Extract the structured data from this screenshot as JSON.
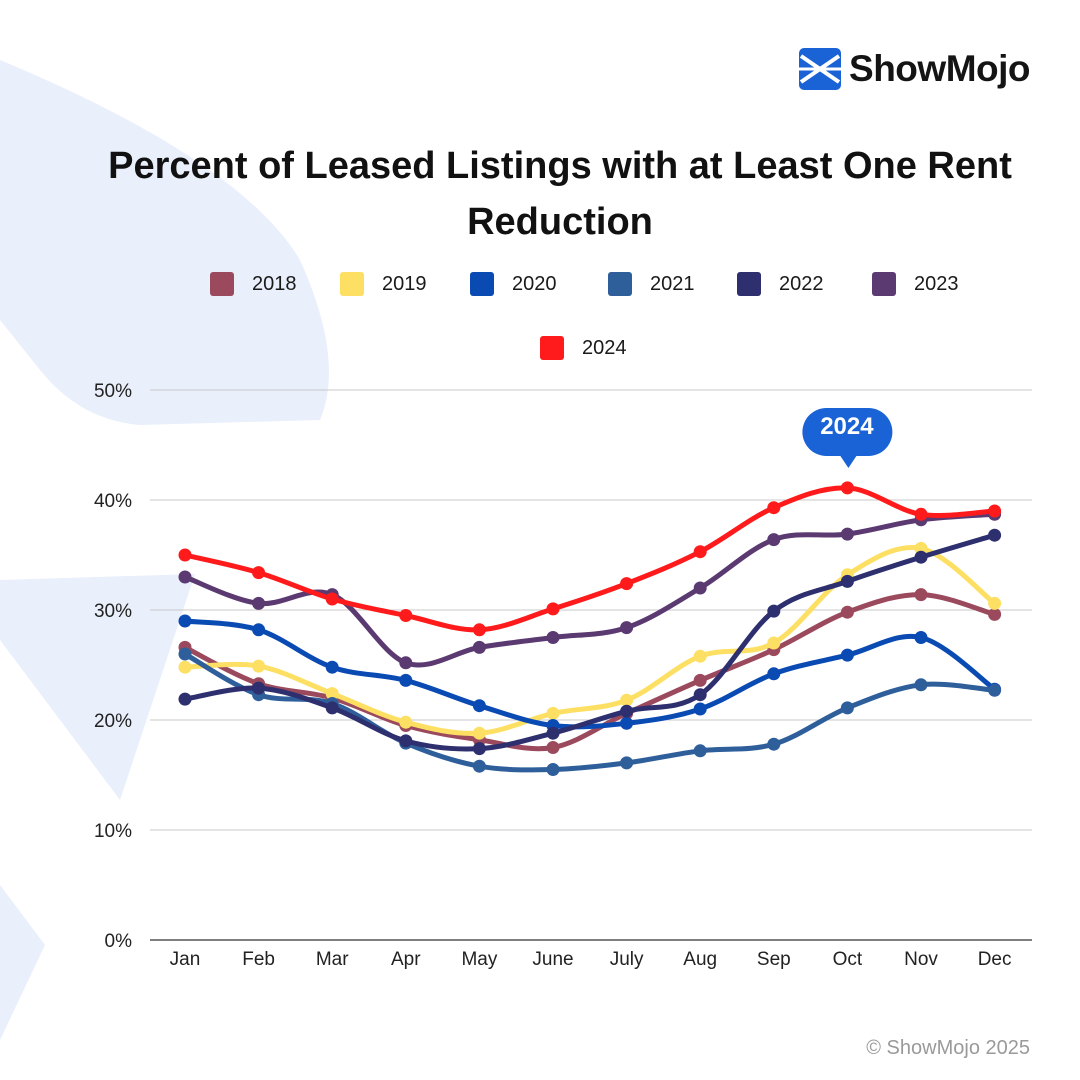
{
  "brand": {
    "name": "ShowMojo",
    "copyright": "© ShowMojo 2025",
    "logo_icon": "showmojo-logo-icon",
    "logo_color": "#1a63d6"
  },
  "chart_data": {
    "type": "line",
    "title": "Percent of Leased Listings with at Least One Rent Reduction",
    "categories": [
      "Jan",
      "Feb",
      "Mar",
      "Apr",
      "May",
      "June",
      "July",
      "Aug",
      "Sep",
      "Oct",
      "Nov",
      "Dec"
    ],
    "y_ticks": [
      "0%",
      "10%",
      "20%",
      "30%",
      "40%",
      "50%"
    ],
    "ylim": [
      0,
      50
    ],
    "grid": true,
    "legend_position": "top-center",
    "series": [
      {
        "name": "2018",
        "color": "#9b4a5e",
        "values": [
          26.6,
          23.3,
          22.0,
          19.5,
          18.2,
          17.5,
          20.6,
          23.6,
          26.4,
          29.8,
          31.4,
          29.6
        ]
      },
      {
        "name": "2019",
        "color": "#fde063",
        "values": [
          24.8,
          24.9,
          22.4,
          19.8,
          18.8,
          20.6,
          21.8,
          25.8,
          27.0,
          33.2,
          35.6,
          30.6
        ]
      },
      {
        "name": "2020",
        "color": "#0a4ab3",
        "values": [
          29.0,
          28.2,
          24.8,
          23.6,
          21.3,
          19.5,
          19.7,
          21.0,
          24.2,
          25.9,
          27.5,
          22.8
        ]
      },
      {
        "name": "2021",
        "color": "#2f5f9b",
        "values": [
          26.0,
          22.3,
          21.5,
          17.9,
          15.8,
          15.5,
          16.1,
          17.2,
          17.8,
          21.1,
          23.2,
          22.7
        ]
      },
      {
        "name": "2022",
        "color": "#2d2f6e",
        "values": [
          21.9,
          22.9,
          21.1,
          18.1,
          17.4,
          18.8,
          20.8,
          22.3,
          29.9,
          32.6,
          34.8,
          36.8
        ]
      },
      {
        "name": "2023",
        "color": "#5b3a72",
        "values": [
          33.0,
          30.6,
          31.4,
          25.2,
          26.6,
          27.5,
          28.4,
          32.0,
          36.4,
          36.9,
          38.2,
          38.7
        ]
      },
      {
        "name": "2024",
        "color": "#ff1b1b",
        "values": [
          35.0,
          33.4,
          31.0,
          29.5,
          28.2,
          30.1,
          32.4,
          35.3,
          39.3,
          41.1,
          38.7,
          39.0
        ]
      }
    ],
    "annotation": {
      "text": "2024",
      "category": "Oct",
      "color": "#1a63d6"
    }
  }
}
